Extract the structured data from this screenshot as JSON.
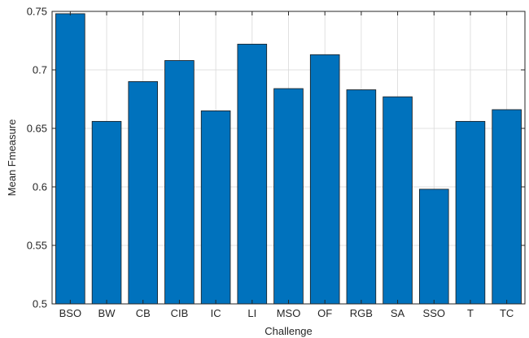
{
  "chart_data": {
    "type": "bar",
    "categories": [
      "BSO",
      "BW",
      "CB",
      "CIB",
      "IC",
      "LI",
      "MSO",
      "OF",
      "RGB",
      "SA",
      "SSO",
      "T",
      "TC"
    ],
    "values": [
      0.748,
      0.656,
      0.69,
      0.708,
      0.665,
      0.722,
      0.684,
      0.713,
      0.683,
      0.677,
      0.598,
      0.656,
      0.666
    ],
    "xlabel": "Challenge",
    "ylabel": "Mean Fmeasure",
    "ylim": [
      0.5,
      0.75
    ],
    "yticks": [
      "0.5",
      "0.55",
      "0.6",
      "0.65",
      "0.7",
      "0.75"
    ],
    "grid": true,
    "bar_color": "#0072BD"
  }
}
